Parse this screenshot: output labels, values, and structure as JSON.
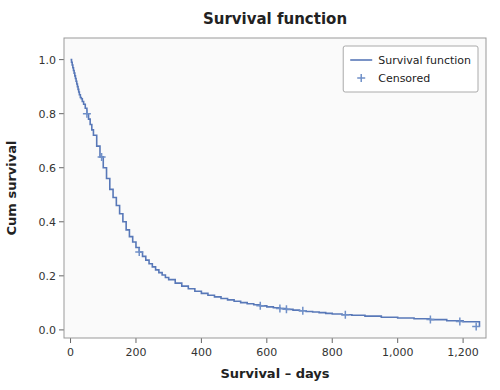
{
  "chart_data": {
    "type": "step",
    "title": "Survival function",
    "x_label": "Survival – days",
    "y_label": "Cum survival",
    "xlim": [
      -20,
      1270
    ],
    "ylim": [
      -0.03,
      1.08
    ],
    "xticks": [
      0,
      200,
      400,
      600,
      800,
      {
        "value": 1000,
        "label": "1,000"
      },
      {
        "value": 1200,
        "label": "1,200"
      }
    ],
    "yticks": [
      {
        "value": 0.0,
        "label": "0.0"
      },
      0.2,
      0.4,
      0.6,
      0.8,
      {
        "value": 1.0,
        "label": "1.0"
      }
    ],
    "grid": false,
    "legend": "upper right",
    "series": [
      {
        "name": "Survival function",
        "type": "step",
        "color": "#5878b8",
        "x": [
          0,
          3,
          5,
          7,
          9,
          11,
          13,
          15,
          17,
          19,
          21,
          23,
          25,
          27,
          30,
          33,
          36,
          40,
          45,
          50,
          55,
          60,
          65,
          70,
          80,
          90,
          100,
          110,
          120,
          130,
          140,
          150,
          160,
          170,
          180,
          190,
          200,
          210,
          220,
          230,
          240,
          250,
          260,
          270,
          280,
          290,
          300,
          320,
          340,
          360,
          380,
          400,
          420,
          440,
          460,
          480,
          500,
          520,
          540,
          560,
          580,
          600,
          620,
          640,
          660,
          680,
          700,
          720,
          740,
          760,
          780,
          800,
          830,
          860,
          900,
          950,
          1000,
          1050,
          1100,
          1150,
          1200,
          1250
        ],
        "values": [
          1.0,
          0.99,
          0.98,
          0.97,
          0.96,
          0.95,
          0.94,
          0.93,
          0.92,
          0.91,
          0.9,
          0.89,
          0.88,
          0.87,
          0.86,
          0.855,
          0.845,
          0.835,
          0.82,
          0.8,
          0.78,
          0.76,
          0.74,
          0.72,
          0.68,
          0.64,
          0.6,
          0.56,
          0.52,
          0.49,
          0.46,
          0.43,
          0.4,
          0.37,
          0.345,
          0.325,
          0.305,
          0.288,
          0.272,
          0.258,
          0.245,
          0.233,
          0.222,
          0.212,
          0.203,
          0.194,
          0.186,
          0.173,
          0.162,
          0.152,
          0.143,
          0.135,
          0.128,
          0.122,
          0.116,
          0.111,
          0.106,
          0.101,
          0.097,
          0.093,
          0.089,
          0.085,
          0.082,
          0.079,
          0.076,
          0.073,
          0.071,
          0.068,
          0.066,
          0.064,
          0.061,
          0.059,
          0.056,
          0.054,
          0.051,
          0.047,
          0.044,
          0.041,
          0.038,
          0.034,
          0.03,
          0.013
        ]
      },
      {
        "name": "Censored",
        "type": "scatter",
        "marker": "+",
        "color": "#7090c8",
        "x": [
          50,
          95,
          210,
          580,
          640,
          660,
          710,
          840,
          1100,
          1190,
          1240
        ],
        "values": [
          0.8,
          0.64,
          0.288,
          0.089,
          0.079,
          0.076,
          0.071,
          0.056,
          0.038,
          0.031,
          0.013
        ]
      }
    ]
  }
}
